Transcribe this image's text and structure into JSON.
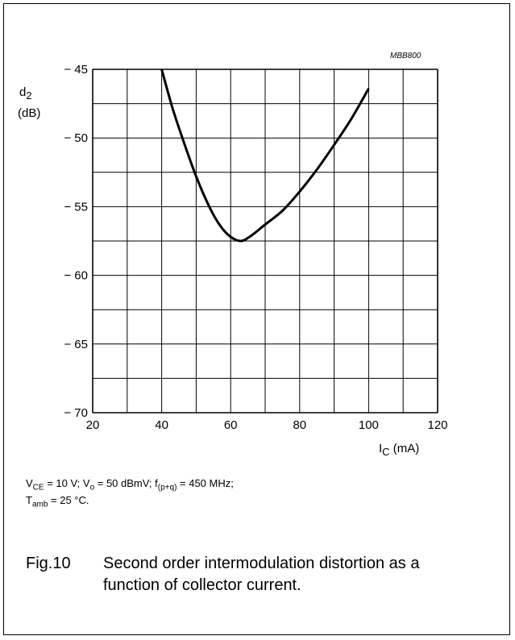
{
  "chart_data": {
    "type": "line",
    "id_label": "MBB800",
    "ylabel_symbol": "d",
    "ylabel_sub": "2",
    "ylabel_unit": "(dB)",
    "xlabel_symbol": "I",
    "xlabel_sub": "C",
    "xlabel_unit": " (mA)",
    "xlim": [
      20,
      120
    ],
    "ylim": [
      -70,
      -45
    ],
    "x_ticks": [
      20,
      40,
      60,
      80,
      100,
      120
    ],
    "x_tick_labels": [
      "20",
      "40",
      "60",
      "80",
      "100",
      "120"
    ],
    "y_ticks": [
      -45,
      -50,
      -55,
      -60,
      -65,
      -70
    ],
    "y_tick_labels": [
      "− 45",
      "− 50",
      "− 55",
      "− 60",
      "− 65",
      "− 70"
    ],
    "grid": true,
    "series": [
      {
        "x": [
          40,
          43,
          46,
          50,
          54,
          57,
          60,
          63,
          66,
          70,
          75,
          80,
          85,
          90,
          95,
          100
        ],
        "y": [
          -45.0,
          -47.7,
          -50.0,
          -52.8,
          -55.1,
          -56.4,
          -57.2,
          -57.5,
          -57.1,
          -56.3,
          -55.3,
          -53.9,
          -52.3,
          -50.5,
          -48.6,
          -46.4
        ]
      }
    ]
  },
  "conditions": {
    "line1": {
      "v_ce_sym": "V",
      "v_ce_sub": "CE",
      "v_ce_val": " = 10 V; ",
      "v_o_sym": "V",
      "v_o_sub": "o",
      "v_o_val": " = 50 dBmV; ",
      "f_sym": "f",
      "f_sub": "(p+q)",
      "f_val": " = 450 MHz;"
    },
    "line2": {
      "t_sym": "T",
      "t_sub": "amb",
      "t_val": " = 25 °C."
    }
  },
  "caption": {
    "number": "Fig.10",
    "text": "Second order intermodulation distortion as a function of collector current."
  }
}
